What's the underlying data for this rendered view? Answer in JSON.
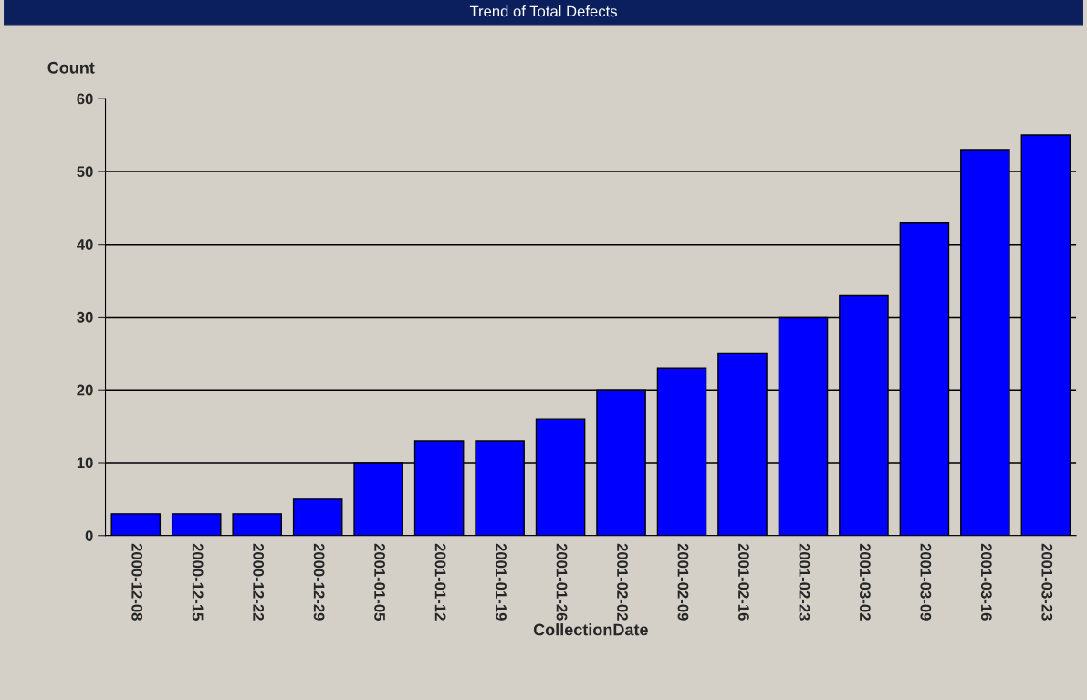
{
  "chart_data": {
    "type": "bar",
    "title": "Trend of Total Defects",
    "xlabel": "CollectionDate",
    "ylabel": "Count",
    "categories": [
      "2000-12-08",
      "2000-12-15",
      "2000-12-22",
      "2000-12-29",
      "2001-01-05",
      "2001-01-12",
      "2001-01-19",
      "2001-01-26",
      "2001-02-02",
      "2001-02-09",
      "2001-02-16",
      "2001-02-23",
      "2001-03-02",
      "2001-03-09",
      "2001-03-16",
      "2001-03-23"
    ],
    "values": [
      3,
      3,
      3,
      5,
      10,
      13,
      13,
      16,
      20,
      23,
      25,
      30,
      33,
      43,
      53,
      55
    ],
    "color": "#0000ff",
    "ylim": [
      0,
      60
    ],
    "yticks": [
      0,
      10,
      20,
      30,
      40,
      50,
      60
    ],
    "grid": "y"
  }
}
